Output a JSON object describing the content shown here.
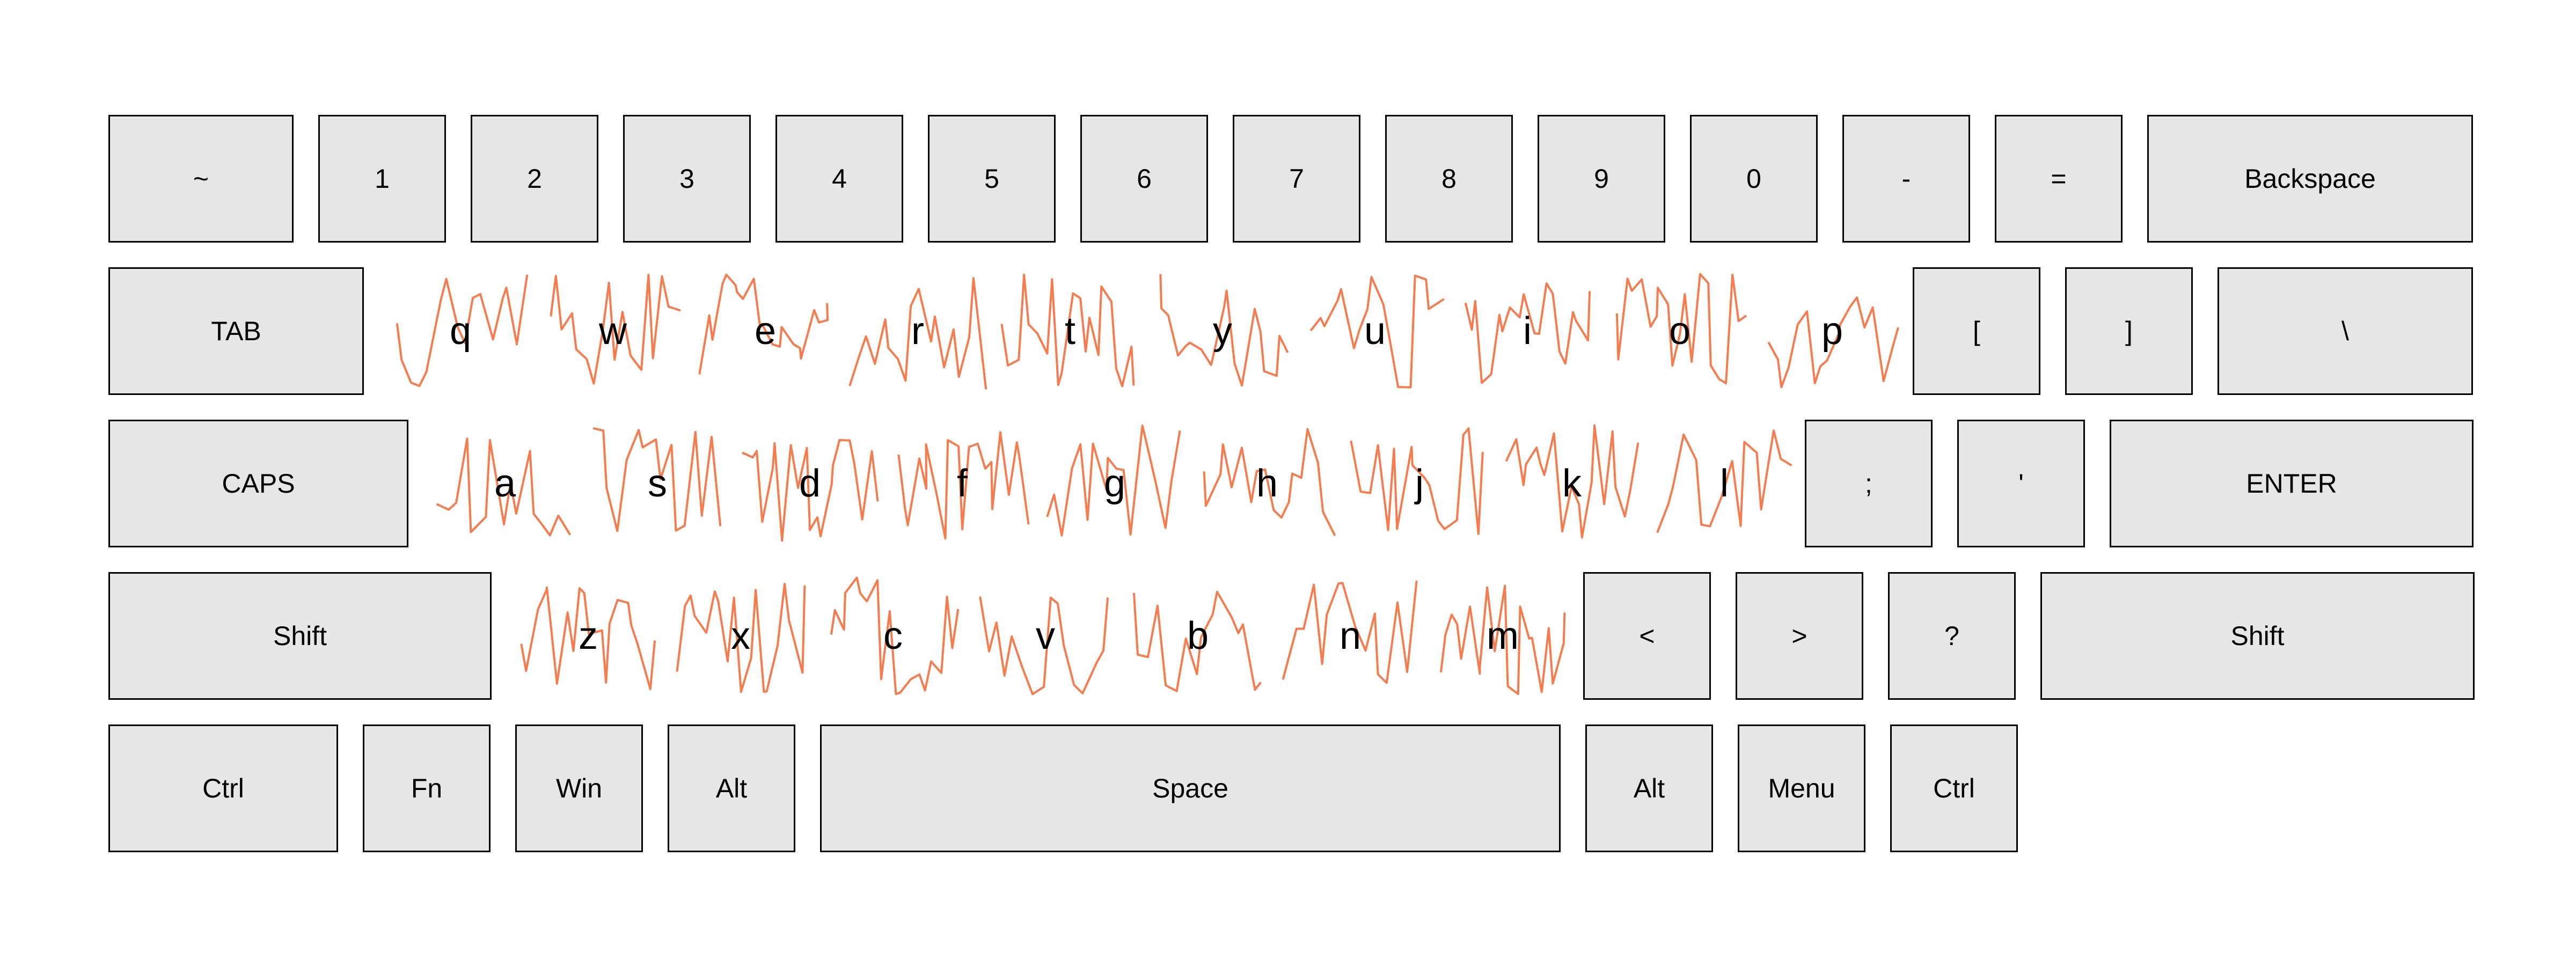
{
  "colors": {
    "key_fill": "#e6e6e6",
    "key_border": "#000000",
    "trace": "#f47c4e",
    "text": "#000000"
  },
  "rows": [
    {
      "keys": [
        {
          "id": "tilde",
          "label": "~",
          "width": 1.45
        },
        {
          "id": "1",
          "label": "1"
        },
        {
          "id": "2",
          "label": "2"
        },
        {
          "id": "3",
          "label": "3"
        },
        {
          "id": "4",
          "label": "4"
        },
        {
          "id": "5",
          "label": "5"
        },
        {
          "id": "6",
          "label": "6"
        },
        {
          "id": "7",
          "label": "7"
        },
        {
          "id": "8",
          "label": "8"
        },
        {
          "id": "9",
          "label": "9"
        },
        {
          "id": "0",
          "label": "0"
        },
        {
          "id": "minus",
          "label": "-"
        },
        {
          "id": "equals",
          "label": "="
        },
        {
          "id": "backspace",
          "label": "Backspace",
          "width": 2.55
        }
      ]
    },
    {
      "keys": [
        {
          "id": "tab",
          "label": "TAB",
          "width": 2.0
        },
        {
          "id": "q",
          "label": "q",
          "type": "letter"
        },
        {
          "id": "w",
          "label": "w",
          "type": "letter"
        },
        {
          "id": "e",
          "label": "e",
          "type": "letter"
        },
        {
          "id": "r",
          "label": "r",
          "type": "letter"
        },
        {
          "id": "t",
          "label": "t",
          "type": "letter"
        },
        {
          "id": "y",
          "label": "y",
          "type": "letter"
        },
        {
          "id": "u",
          "label": "u",
          "type": "letter"
        },
        {
          "id": "i",
          "label": "i",
          "type": "letter"
        },
        {
          "id": "o",
          "label": "o",
          "type": "letter"
        },
        {
          "id": "p",
          "label": "p",
          "type": "letter"
        },
        {
          "id": "lbracket",
          "label": "["
        },
        {
          "id": "rbracket",
          "label": "]"
        },
        {
          "id": "backslash",
          "label": "\\",
          "width": 2.0
        }
      ]
    },
    {
      "keys": [
        {
          "id": "caps",
          "label": "CAPS",
          "width": 2.35
        },
        {
          "id": "a",
          "label": "a",
          "type": "letter"
        },
        {
          "id": "s",
          "label": "s",
          "type": "letter"
        },
        {
          "id": "d",
          "label": "d",
          "type": "letter"
        },
        {
          "id": "f",
          "label": "f",
          "type": "letter"
        },
        {
          "id": "g",
          "label": "g",
          "type": "letter"
        },
        {
          "id": "h",
          "label": "h",
          "type": "letter"
        },
        {
          "id": "j",
          "label": "j",
          "type": "letter"
        },
        {
          "id": "k",
          "label": "k",
          "type": "letter"
        },
        {
          "id": "l",
          "label": "l",
          "type": "letter"
        },
        {
          "id": "semicolon",
          "label": ";"
        },
        {
          "id": "quote",
          "label": "'"
        },
        {
          "id": "enter",
          "label": "ENTER",
          "width": 2.85
        }
      ]
    },
    {
      "keys": [
        {
          "id": "lshift",
          "label": "Shift",
          "width": 3.0
        },
        {
          "id": "z",
          "label": "z",
          "type": "letter"
        },
        {
          "id": "x",
          "label": "x",
          "type": "letter"
        },
        {
          "id": "c",
          "label": "c",
          "type": "letter"
        },
        {
          "id": "v",
          "label": "v",
          "type": "letter"
        },
        {
          "id": "b",
          "label": "b",
          "type": "letter"
        },
        {
          "id": "n",
          "label": "n",
          "type": "letter"
        },
        {
          "id": "m",
          "label": "m",
          "type": "letter"
        },
        {
          "id": "lt",
          "label": "<"
        },
        {
          "id": "gt",
          "label": ">"
        },
        {
          "id": "question",
          "label": "?"
        },
        {
          "id": "rshift",
          "label": "Shift",
          "width": 3.4
        }
      ]
    },
    {
      "keys": [
        {
          "id": "lctrl",
          "label": "Ctrl",
          "width": 1.8
        },
        {
          "id": "fn",
          "label": "Fn"
        },
        {
          "id": "win",
          "label": "Win"
        },
        {
          "id": "lalt",
          "label": "Alt"
        },
        {
          "id": "space",
          "label": "Space",
          "width": 5.8
        },
        {
          "id": "ralt",
          "label": "Alt"
        },
        {
          "id": "menu",
          "label": "Menu"
        },
        {
          "id": "rctrl",
          "label": "Ctrl"
        }
      ]
    }
  ]
}
